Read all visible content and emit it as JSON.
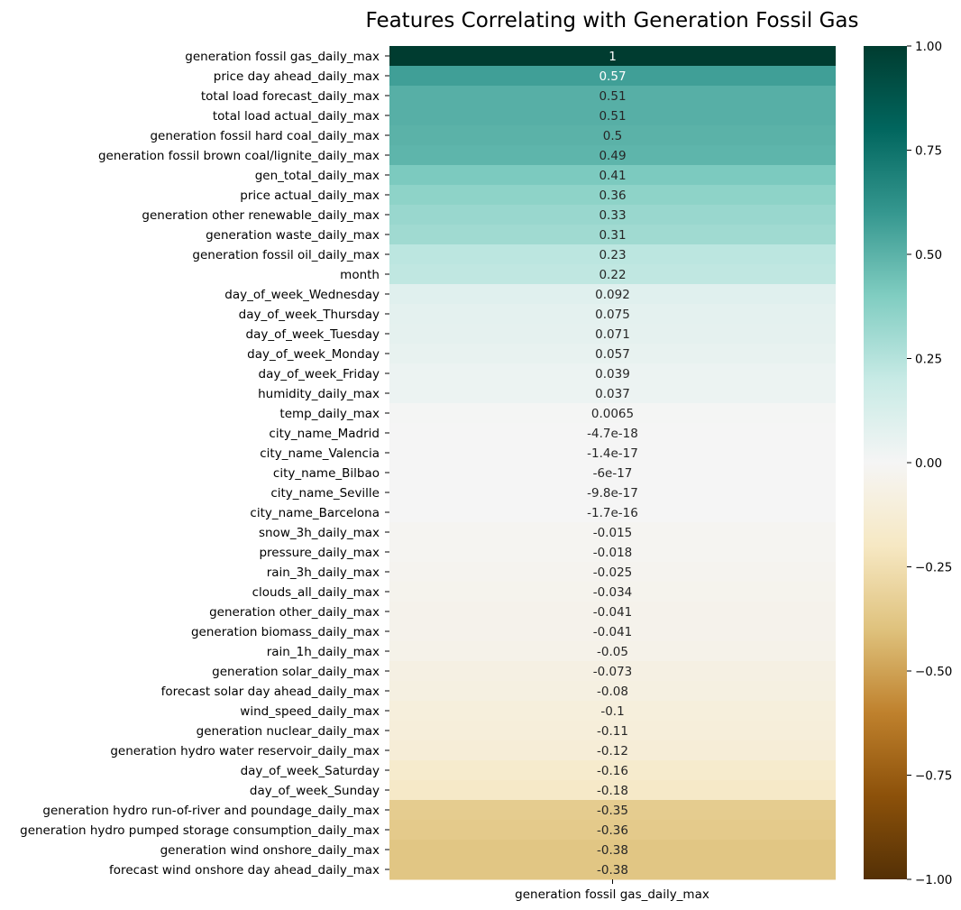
{
  "chart_data": {
    "type": "heatmap",
    "title": "Features Correlating with Generation Fossil Gas",
    "column_label": "generation fossil gas_daily_max",
    "colormap": "BrBG",
    "vmin": -1,
    "vmax": 1,
    "colorbar_ticks": [
      "1.00",
      "0.75",
      "0.50",
      "0.25",
      "0.00",
      "−0.25",
      "−0.50",
      "−0.75",
      "−1.00"
    ],
    "colorbar_tick_values": [
      1,
      0.75,
      0.5,
      0.25,
      0,
      -0.25,
      -0.5,
      -0.75,
      -1
    ],
    "rows": [
      {
        "label": "generation fossil gas_daily_max",
        "value": 1,
        "annot": "1"
      },
      {
        "label": "price day ahead_daily_max",
        "value": 0.57,
        "annot": "0.57"
      },
      {
        "label": "total load forecast_daily_max",
        "value": 0.51,
        "annot": "0.51"
      },
      {
        "label": "total load actual_daily_max",
        "value": 0.51,
        "annot": "0.51"
      },
      {
        "label": "generation fossil hard coal_daily_max",
        "value": 0.5,
        "annot": "0.5"
      },
      {
        "label": "generation fossil brown coal/lignite_daily_max",
        "value": 0.49,
        "annot": "0.49"
      },
      {
        "label": "gen_total_daily_max",
        "value": 0.41,
        "annot": "0.41"
      },
      {
        "label": "price actual_daily_max",
        "value": 0.36,
        "annot": "0.36"
      },
      {
        "label": "generation other renewable_daily_max",
        "value": 0.33,
        "annot": "0.33"
      },
      {
        "label": "generation waste_daily_max",
        "value": 0.31,
        "annot": "0.31"
      },
      {
        "label": "generation fossil oil_daily_max",
        "value": 0.23,
        "annot": "0.23"
      },
      {
        "label": "month",
        "value": 0.22,
        "annot": "0.22"
      },
      {
        "label": "day_of_week_Wednesday",
        "value": 0.092,
        "annot": "0.092"
      },
      {
        "label": "day_of_week_Thursday",
        "value": 0.075,
        "annot": "0.075"
      },
      {
        "label": "day_of_week_Tuesday",
        "value": 0.071,
        "annot": "0.071"
      },
      {
        "label": "day_of_week_Monday",
        "value": 0.057,
        "annot": "0.057"
      },
      {
        "label": "day_of_week_Friday",
        "value": 0.039,
        "annot": "0.039"
      },
      {
        "label": "humidity_daily_max",
        "value": 0.037,
        "annot": "0.037"
      },
      {
        "label": "temp_daily_max",
        "value": 0.0065,
        "annot": "0.0065"
      },
      {
        "label": "city_name_Madrid",
        "value": -4.7e-18,
        "annot": "-4.7e-18"
      },
      {
        "label": "city_name_Valencia",
        "value": -1.4e-17,
        "annot": "-1.4e-17"
      },
      {
        "label": "city_name_Bilbao",
        "value": -6e-17,
        "annot": "-6e-17"
      },
      {
        "label": "city_name_Seville",
        "value": -9.8e-17,
        "annot": "-9.8e-17"
      },
      {
        "label": "city_name_Barcelona",
        "value": -1.7e-16,
        "annot": "-1.7e-16"
      },
      {
        "label": "snow_3h_daily_max",
        "value": -0.015,
        "annot": "-0.015"
      },
      {
        "label": "pressure_daily_max",
        "value": -0.018,
        "annot": "-0.018"
      },
      {
        "label": "rain_3h_daily_max",
        "value": -0.025,
        "annot": "-0.025"
      },
      {
        "label": "clouds_all_daily_max",
        "value": -0.034,
        "annot": "-0.034"
      },
      {
        "label": "generation other_daily_max",
        "value": -0.041,
        "annot": "-0.041"
      },
      {
        "label": "generation biomass_daily_max",
        "value": -0.041,
        "annot": "-0.041"
      },
      {
        "label": "rain_1h_daily_max",
        "value": -0.05,
        "annot": "-0.05"
      },
      {
        "label": "generation solar_daily_max",
        "value": -0.073,
        "annot": "-0.073"
      },
      {
        "label": "forecast solar day ahead_daily_max",
        "value": -0.08,
        "annot": "-0.08"
      },
      {
        "label": "wind_speed_daily_max",
        "value": -0.1,
        "annot": "-0.1"
      },
      {
        "label": "generation nuclear_daily_max",
        "value": -0.11,
        "annot": "-0.11"
      },
      {
        "label": "generation hydro water reservoir_daily_max",
        "value": -0.12,
        "annot": "-0.12"
      },
      {
        "label": "day_of_week_Saturday",
        "value": -0.16,
        "annot": "-0.16"
      },
      {
        "label": "day_of_week_Sunday",
        "value": -0.18,
        "annot": "-0.18"
      },
      {
        "label": "generation hydro run-of-river and poundage_daily_max",
        "value": -0.35,
        "annot": "-0.35"
      },
      {
        "label": "generation hydro pumped storage consumption_daily_max",
        "value": -0.36,
        "annot": "-0.36"
      },
      {
        "label": "generation wind onshore_daily_max",
        "value": -0.38,
        "annot": "-0.38"
      },
      {
        "label": "forecast wind onshore day ahead_daily_max",
        "value": -0.38,
        "annot": "-0.38"
      }
    ]
  }
}
